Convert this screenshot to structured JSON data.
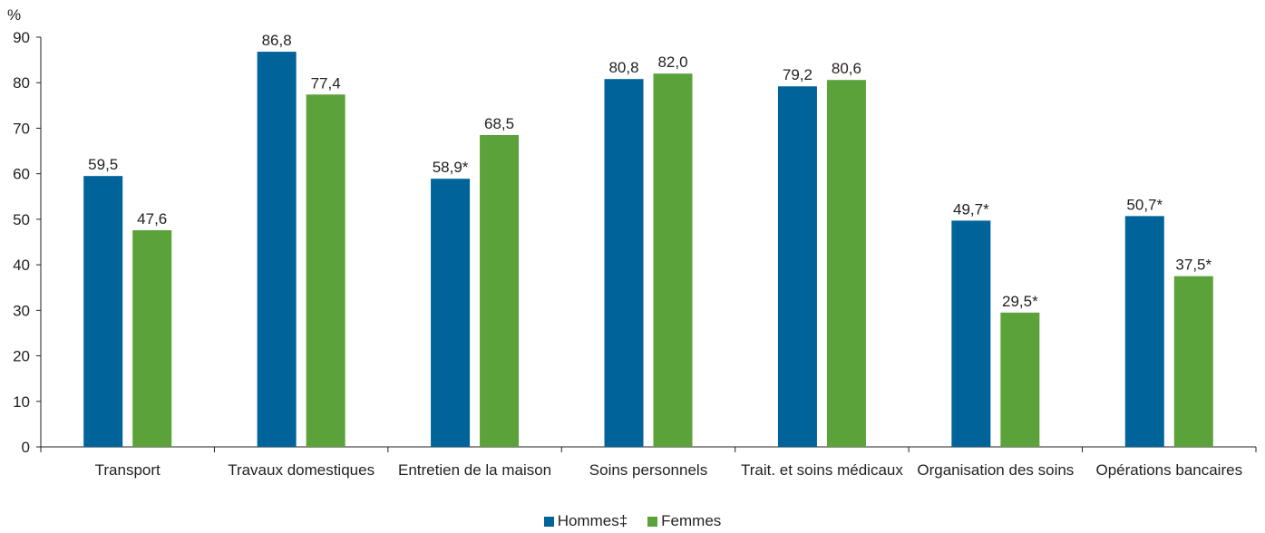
{
  "chart_data": {
    "type": "bar",
    "unit_label": "%",
    "ylim": [
      0,
      90
    ],
    "yticks": [
      0,
      10,
      20,
      30,
      40,
      50,
      60,
      70,
      80,
      90
    ],
    "categories": [
      "Transport",
      "Travaux domestiques",
      "Entretien de la maison",
      "Soins personnels",
      "Trait. et soins médicaux",
      "Organisation des soins",
      "Opérations bancaires"
    ],
    "series": [
      {
        "name": "Hommes‡",
        "color": "#00639a",
        "values": [
          59.5,
          86.8,
          58.9,
          80.8,
          79.2,
          49.7,
          50.7
        ],
        "labels": [
          "59,5",
          "86,8",
          "58,9*",
          "80,8",
          "79,2",
          "49,7*",
          "50,7*"
        ]
      },
      {
        "name": "Femmes",
        "color": "#5ba23a",
        "values": [
          47.6,
          77.4,
          68.5,
          82.0,
          80.6,
          29.5,
          37.5
        ],
        "labels": [
          "47,6",
          "77,4",
          "68,5",
          "82,0",
          "80,6",
          "29,5*",
          "37,5*"
        ]
      }
    ],
    "grid": false,
    "legend_position": "bottom-center"
  }
}
